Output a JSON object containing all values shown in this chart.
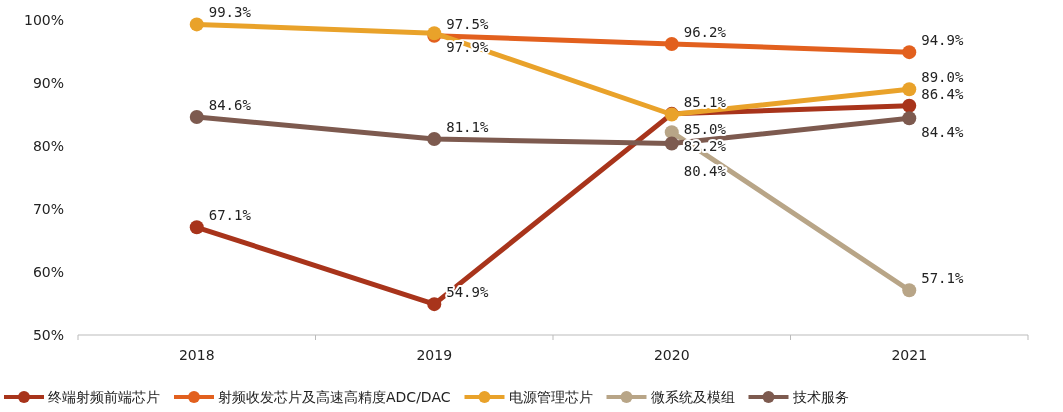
{
  "chart_data": {
    "type": "line",
    "categories": [
      "2018",
      "2019",
      "2020",
      "2021"
    ],
    "ylim": [
      50,
      100
    ],
    "yticks": [
      {
        "value": 50,
        "label": "50%"
      },
      {
        "value": 60,
        "label": "60%"
      },
      {
        "value": 70,
        "label": "70%"
      },
      {
        "value": 80,
        "label": "80%"
      },
      {
        "value": 90,
        "label": "90%"
      },
      {
        "value": 100,
        "label": "100%"
      }
    ],
    "grid": false,
    "legend": "bottom",
    "marker": "circle",
    "line_style": "solid",
    "series": [
      {
        "name": "终端射频前端芯片",
        "color": "#a8341b",
        "values": [
          67.1,
          54.9,
          85.1,
          86.4
        ],
        "value_labels": [
          "67.1%",
          "54.9%",
          "85.1%",
          "86.4%"
        ]
      },
      {
        "name": "射频收发芯片及高速高精度ADC/DAC",
        "color": "#e2601e",
        "values": [
          null,
          97.5,
          96.2,
          94.9
        ],
        "value_labels": [
          null,
          "97.5%",
          "96.2%",
          "94.9%"
        ]
      },
      {
        "name": "电源管理芯片",
        "color": "#e9a22a",
        "values": [
          99.3,
          97.9,
          85.0,
          89.0
        ],
        "value_labels": [
          "99.3%",
          "97.9%",
          "85.0%",
          "89.0%"
        ]
      },
      {
        "name": "微系统及模组",
        "color": "#b8a587",
        "values": [
          null,
          null,
          82.2,
          57.1
        ],
        "value_labels": [
          null,
          null,
          "82.2%",
          "57.1%"
        ]
      },
      {
        "name": "技术服务",
        "color": "#7d5a4f",
        "values": [
          84.6,
          81.1,
          80.4,
          84.4
        ],
        "value_labels": [
          "84.6%",
          "81.1%",
          "80.4%",
          "84.4%"
        ]
      }
    ]
  }
}
